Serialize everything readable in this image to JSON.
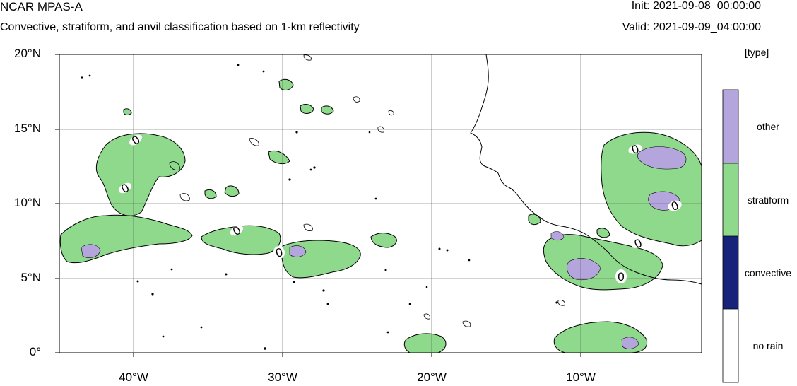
{
  "header": {
    "title": "NCAR MPAS-A",
    "subtitle": "Convective, stratiform, and anvil classification based on 1-km reflectivity",
    "init": "Init: 2021-09-08_00:00:00",
    "valid": "Valid: 2021-09-09_04:00:00"
  },
  "map": {
    "lat_labels": [
      "20°N",
      "15°N",
      "10°N",
      "5°N",
      "0°"
    ],
    "lon_labels": [
      "40°W",
      "30°W",
      "20°W",
      "10°W"
    ],
    "lat_range": [
      0,
      20
    ],
    "lon_range": [
      -45,
      -2
    ],
    "contour_label": "0"
  },
  "legend": {
    "title": "[type]",
    "items": [
      {
        "label": "other",
        "color": "#b4a6dc"
      },
      {
        "label": "stratiform",
        "color": "#8ed98c"
      },
      {
        "label": "convective",
        "color": "#17237a"
      },
      {
        "label": "no rain",
        "color": "#ffffff"
      }
    ]
  }
}
